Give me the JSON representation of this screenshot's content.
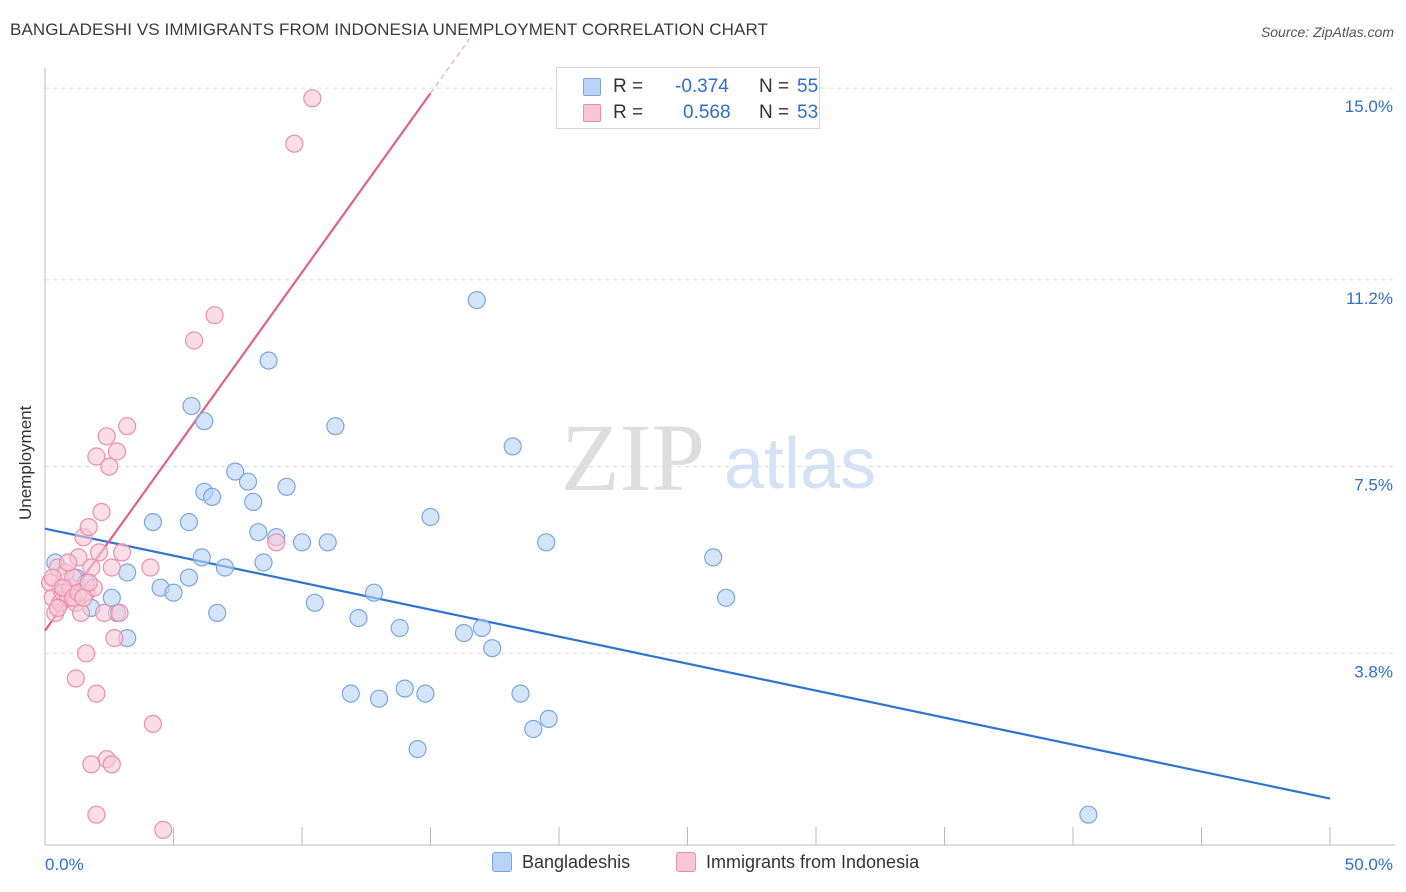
{
  "title": "BANGLADESHI VS IMMIGRANTS FROM INDONESIA UNEMPLOYMENT CORRELATION CHART",
  "source": "Source: ZipAtlas.com",
  "watermark": {
    "zip": "ZIP",
    "atlas": "atlas"
  },
  "legend": {
    "r_label": "R =",
    "n_label": "N =",
    "series": [
      {
        "name": "Bangladeshis",
        "r": "-0.374",
        "n": "55",
        "fill": "#b8d3f5",
        "stroke": "#7aa6e0"
      },
      {
        "name": "Immigrants from Indonesia",
        "r": "0.568",
        "n": "53",
        "fill": "#f9c6d6",
        "stroke": "#ea8fac"
      }
    ]
  },
  "chart_data": {
    "type": "scatter",
    "title": "BANGLADESHI VS IMMIGRANTS FROM INDONESIA UNEMPLOYMENT CORRELATION CHART",
    "xlabel": "",
    "ylabel": "Unemployment",
    "x_tick_labels": [
      "0.0%",
      "50.0%"
    ],
    "y_tick_labels": [
      "3.8%",
      "7.5%",
      "11.2%",
      "15.0%"
    ],
    "y_ticks": [
      3.8,
      7.5,
      11.2,
      15.0
    ],
    "xlim": [
      0,
      50
    ],
    "ylim": [
      0,
      15.4
    ],
    "grid": true,
    "legend_position": "top-center",
    "colors": {
      "bangladeshis": "#2f74d0",
      "indonesia": "#e0608a",
      "tick_label": "#2f6fc9"
    },
    "series": [
      {
        "name": "Bangladeshis",
        "points": [
          [
            0.4,
            5.6
          ],
          [
            0.6,
            5.1
          ],
          [
            0.9,
            5.0
          ],
          [
            1.2,
            5.3
          ],
          [
            1.6,
            5.2
          ],
          [
            1.8,
            4.7
          ],
          [
            2.8,
            4.6
          ],
          [
            3.2,
            4.1
          ],
          [
            2.6,
            4.9
          ],
          [
            3.2,
            5.4
          ],
          [
            4.2,
            6.4
          ],
          [
            4.5,
            5.1
          ],
          [
            5.0,
            5.0
          ],
          [
            5.6,
            5.3
          ],
          [
            6.1,
            5.7
          ],
          [
            6.2,
            7.0
          ],
          [
            5.6,
            6.4
          ],
          [
            5.7,
            8.7
          ],
          [
            6.2,
            8.4
          ],
          [
            6.5,
            6.9
          ],
          [
            6.7,
            4.6
          ],
          [
            7.0,
            5.5
          ],
          [
            7.4,
            7.4
          ],
          [
            7.9,
            7.2
          ],
          [
            8.1,
            6.8
          ],
          [
            8.3,
            6.2
          ],
          [
            8.5,
            5.6
          ],
          [
            8.7,
            9.6
          ],
          [
            9.0,
            6.1
          ],
          [
            9.4,
            7.1
          ],
          [
            10.0,
            6.0
          ],
          [
            10.5,
            4.8
          ],
          [
            11.0,
            6.0
          ],
          [
            11.3,
            8.3
          ],
          [
            12.2,
            4.5
          ],
          [
            11.9,
            3.0
          ],
          [
            12.8,
            5.0
          ],
          [
            13.0,
            2.9
          ],
          [
            13.8,
            4.3
          ],
          [
            14.0,
            3.1
          ],
          [
            14.5,
            1.9
          ],
          [
            14.8,
            3.0
          ],
          [
            15.0,
            6.5
          ],
          [
            16.3,
            4.2
          ],
          [
            16.8,
            10.8
          ],
          [
            17.0,
            4.3
          ],
          [
            17.4,
            3.9
          ],
          [
            18.2,
            7.9
          ],
          [
            18.5,
            3.0
          ],
          [
            19.0,
            2.3
          ],
          [
            19.5,
            6.0
          ],
          [
            19.6,
            2.5
          ],
          [
            26.0,
            5.7
          ],
          [
            26.5,
            4.9
          ],
          [
            40.6,
            0.6
          ]
        ]
      },
      {
        "name": "Immigrants from Indonesia",
        "points": [
          [
            0.2,
            5.2
          ],
          [
            0.3,
            4.9
          ],
          [
            0.4,
            4.6
          ],
          [
            0.5,
            5.5
          ],
          [
            0.6,
            4.8
          ],
          [
            0.7,
            5.0
          ],
          [
            0.8,
            5.4
          ],
          [
            0.9,
            4.9
          ],
          [
            1.0,
            5.1
          ],
          [
            1.1,
            5.3
          ],
          [
            1.2,
            4.8
          ],
          [
            1.3,
            5.7
          ],
          [
            1.4,
            4.6
          ],
          [
            1.5,
            6.1
          ],
          [
            1.6,
            5.0
          ],
          [
            1.7,
            6.3
          ],
          [
            1.8,
            5.5
          ],
          [
            1.9,
            5.1
          ],
          [
            2.0,
            7.7
          ],
          [
            2.1,
            5.8
          ],
          [
            2.2,
            6.6
          ],
          [
            2.3,
            4.6
          ],
          [
            2.4,
            8.1
          ],
          [
            2.5,
            7.5
          ],
          [
            2.6,
            5.5
          ],
          [
            2.7,
            4.1
          ],
          [
            2.8,
            7.8
          ],
          [
            2.9,
            4.6
          ],
          [
            3.0,
            5.8
          ],
          [
            3.2,
            8.3
          ],
          [
            1.2,
            3.3
          ],
          [
            1.6,
            3.8
          ],
          [
            2.0,
            3.0
          ],
          [
            2.4,
            1.7
          ],
          [
            1.8,
            1.6
          ],
          [
            2.6,
            1.6
          ],
          [
            2.0,
            0.6
          ],
          [
            4.2,
            2.4
          ],
          [
            4.6,
            0.3
          ],
          [
            5.8,
            10.0
          ],
          [
            6.6,
            10.5
          ],
          [
            9.0,
            6.0
          ],
          [
            9.7,
            13.9
          ],
          [
            10.4,
            14.8
          ],
          [
            0.3,
            5.3
          ],
          [
            0.5,
            4.7
          ],
          [
            0.7,
            5.1
          ],
          [
            0.9,
            5.6
          ],
          [
            1.1,
            4.9
          ],
          [
            1.3,
            5.0
          ],
          [
            1.5,
            4.9
          ],
          [
            1.7,
            5.2
          ],
          [
            4.1,
            5.5
          ]
        ]
      }
    ],
    "trendlines": [
      {
        "name": "Bangladeshis",
        "x": [
          0,
          50
        ],
        "y": [
          6.27,
          0.92
        ]
      },
      {
        "name": "Immigrants from Indonesia",
        "x": [
          0,
          15
        ],
        "y": [
          4.25,
          14.9
        ]
      }
    ]
  }
}
